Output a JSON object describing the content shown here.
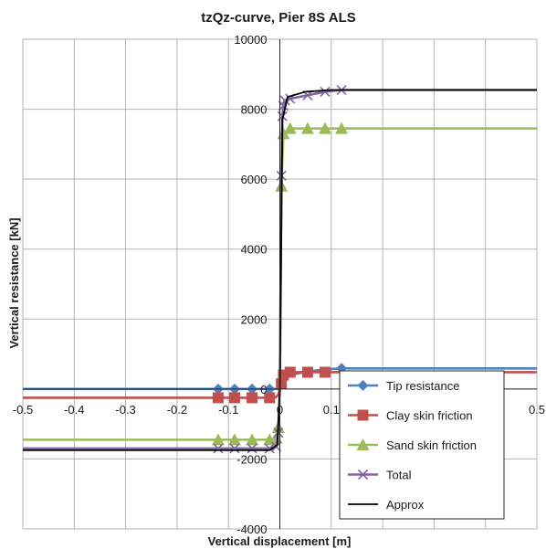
{
  "chart_data": {
    "type": "line",
    "title": "tzQz-curve, Pier 8S ALS",
    "xlabel": "Vertical displacement [m]",
    "ylabel": "Vertical resistance [kN]",
    "xlim": [
      -0.5,
      0.5
    ],
    "ylim": [
      -4000,
      10000
    ],
    "x_ticks": [
      -0.5,
      -0.4,
      -0.3,
      -0.2,
      -0.1,
      0,
      0.1,
      0.2,
      0.3,
      0.4,
      0.5
    ],
    "x_tick_labels": [
      "-0.5",
      "-0.4",
      "-0.3",
      "-0.2",
      "-0.1",
      "0",
      "0.1",
      "",
      "",
      "",
      "0.5"
    ],
    "y_ticks": [
      -4000,
      -2000,
      0,
      2000,
      4000,
      6000,
      8000,
      10000
    ],
    "y_tick_labels": [
      "-4000",
      "-2000",
      "0",
      "2000",
      "4000",
      "6000",
      "8000",
      "10000"
    ],
    "grid": true,
    "legend_position": "bottom-right",
    "series": [
      {
        "name": "Tip resistance",
        "color": "#4F81BD",
        "marker": "diamond",
        "x": [
          -0.5,
          -0.12,
          -0.088,
          -0.054,
          -0.02,
          -0.005,
          0,
          0.005,
          0.02,
          0.054,
          0.088,
          0.12,
          0.5
        ],
        "y": [
          0,
          0,
          0,
          0,
          0,
          0,
          0,
          200,
          400,
          500,
          560,
          590,
          590
        ],
        "marker_x": [
          -0.12,
          -0.088,
          -0.054,
          -0.02,
          0.12
        ]
      },
      {
        "name": "Clay skin friction",
        "color": "#C0504D",
        "marker": "square",
        "x": [
          -0.5,
          -0.12,
          -0.088,
          -0.054,
          -0.02,
          -0.007,
          -0.003,
          0,
          0.003,
          0.007,
          0.02,
          0.054,
          0.088,
          0.12,
          0.5
        ],
        "y": [
          -250,
          -250,
          -250,
          -250,
          -250,
          -230,
          -150,
          0,
          150,
          400,
          480,
          480,
          480,
          480,
          480
        ],
        "marker_x": [
          -0.12,
          -0.088,
          -0.054,
          -0.02,
          0.003,
          0.007,
          0.02,
          0.054,
          0.088
        ]
      },
      {
        "name": "Sand skin friction",
        "color": "#9BBB59",
        "marker": "triangle",
        "x": [
          -0.5,
          -0.12,
          -0.088,
          -0.054,
          -0.02,
          -0.007,
          -0.003,
          0,
          0.003,
          0.007,
          0.02,
          0.054,
          0.088,
          0.12,
          0.5
        ],
        "y": [
          -1450,
          -1450,
          -1450,
          -1450,
          -1450,
          -1400,
          -1100,
          0,
          5800,
          7300,
          7450,
          7450,
          7450,
          7450,
          7450
        ],
        "marker_x": [
          -0.12,
          -0.088,
          -0.054,
          -0.02,
          -0.007,
          -0.003,
          0.003,
          0.007,
          0.02,
          0.054,
          0.088,
          0.12
        ]
      },
      {
        "name": "Total",
        "color": "#8064A2",
        "marker": "x",
        "x": [
          -0.5,
          -0.12,
          -0.088,
          -0.054,
          -0.02,
          -0.007,
          -0.003,
          0,
          0.003,
          0.005,
          0.007,
          0.01,
          0.02,
          0.054,
          0.088,
          0.12,
          0.5
        ],
        "y": [
          -1700,
          -1700,
          -1700,
          -1700,
          -1700,
          -1650,
          -1250,
          0,
          6100,
          7800,
          8100,
          8250,
          8300,
          8400,
          8500,
          8550,
          8550
        ],
        "marker_x": [
          -0.12,
          -0.088,
          -0.054,
          -0.02,
          -0.007,
          -0.003,
          0.003,
          0.005,
          0.007,
          0.01,
          0.02,
          0.054,
          0.088,
          0.12
        ]
      },
      {
        "name": "Approx",
        "color": "#000000",
        "marker": "none",
        "x": [
          -0.5,
          -0.02,
          -0.005,
          0,
          0.005,
          0.015,
          0.05,
          0.1,
          0.5
        ],
        "y": [
          -1750,
          -1750,
          -1600,
          0,
          7700,
          8350,
          8500,
          8550,
          8550
        ]
      }
    ]
  }
}
